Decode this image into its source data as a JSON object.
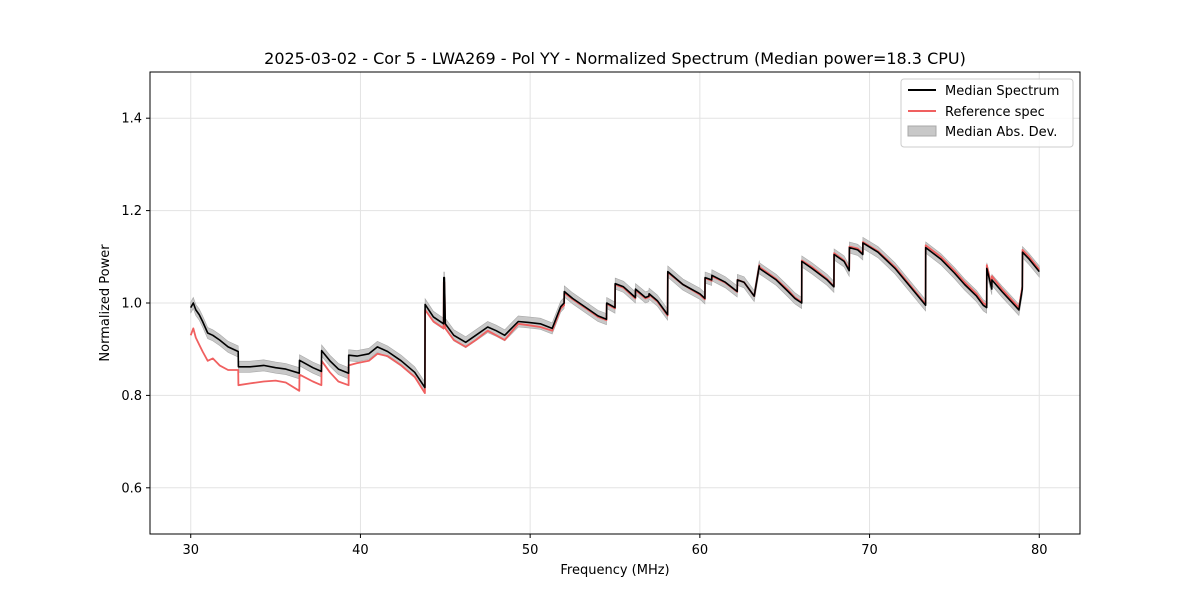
{
  "chart_data": {
    "type": "line",
    "title": "2025-03-02 - Cor 5 - LWA269 - Pol YY - Normalized Spectrum (Median power=18.3 CPU)",
    "xlabel": "Frequency (MHz)",
    "ylabel": "Normalized Power",
    "xlim": [
      27.6,
      82.4
    ],
    "ylim": [
      0.5,
      1.5
    ],
    "xticks": [
      30,
      40,
      50,
      60,
      70,
      80
    ],
    "yticks": [
      0.6,
      0.8,
      1.0,
      1.2,
      1.4
    ],
    "xtick_labels": [
      "30",
      "40",
      "50",
      "60",
      "70",
      "80"
    ],
    "ytick_labels": [
      "0.6",
      "0.8",
      "1.0",
      "1.2",
      "1.4"
    ],
    "grid": true,
    "legend_position": "top-right",
    "colors": {
      "median": "#000000",
      "reference": "#f06060",
      "band_fill": "#c8c8c8",
      "band_edge": "#a8a8a8"
    },
    "series": [
      {
        "name": "Median Spectrum",
        "x": [
          30.0,
          30.15,
          30.3,
          30.5,
          30.7,
          31.0,
          31.3,
          31.7,
          32.2,
          32.8,
          32.81,
          33.5,
          34.3,
          35.0,
          35.6,
          36.4,
          36.41,
          37.2,
          37.7,
          37.71,
          38.2,
          38.7,
          39.3,
          39.31,
          39.8,
          40.5,
          41.0,
          41.6,
          42.4,
          43.2,
          43.8,
          43.81,
          44.3,
          44.9,
          44.91,
          44.95,
          45.0,
          45.5,
          46.2,
          46.8,
          47.5,
          48.0,
          48.5,
          49.3,
          49.9,
          50.6,
          51.3,
          51.8,
          52.0,
          52.01,
          52.5,
          53.3,
          54.0,
          54.5,
          54.51,
          55.0,
          55.01,
          55.5,
          56.2,
          56.21,
          56.8,
          57.0,
          57.01,
          57.5,
          58.1,
          58.11,
          59.0,
          60.0,
          60.3,
          60.31,
          60.7,
          60.71,
          61.5,
          62.2,
          62.21,
          62.6,
          63.2,
          63.5,
          63.51,
          64.5,
          65.2,
          65.6,
          66.0,
          66.01,
          66.6,
          67.5,
          67.9,
          67.91,
          68.5,
          68.8,
          68.81,
          69.3,
          69.6,
          69.61,
          70.5,
          71.5,
          72.4,
          73.3,
          73.31,
          74.2,
          75.0,
          75.6,
          76.3,
          76.7,
          76.9,
          76.91,
          77.2,
          77.21,
          77.8,
          78.3,
          78.8,
          79.0,
          79.01,
          79.4,
          80.0
        ],
        "y": [
          0.99,
          1.0,
          0.985,
          0.975,
          0.96,
          0.935,
          0.93,
          0.92,
          0.905,
          0.895,
          0.862,
          0.862,
          0.865,
          0.86,
          0.857,
          0.848,
          0.876,
          0.86,
          0.852,
          0.897,
          0.875,
          0.857,
          0.848,
          0.887,
          0.885,
          0.89,
          0.905,
          0.895,
          0.875,
          0.85,
          0.817,
          0.997,
          0.97,
          0.955,
          1.055,
          1.055,
          0.955,
          0.93,
          0.915,
          0.93,
          0.948,
          0.94,
          0.93,
          0.96,
          0.958,
          0.955,
          0.945,
          0.992,
          1.0,
          1.025,
          1.01,
          0.99,
          0.972,
          0.965,
          1.0,
          0.99,
          1.042,
          1.035,
          1.012,
          1.03,
          1.012,
          1.015,
          1.02,
          1.005,
          0.975,
          1.068,
          1.04,
          1.02,
          1.01,
          1.055,
          1.05,
          1.06,
          1.045,
          1.025,
          1.05,
          1.045,
          1.015,
          1.08,
          1.075,
          1.05,
          1.025,
          1.01,
          1.0,
          1.09,
          1.075,
          1.05,
          1.035,
          1.105,
          1.09,
          1.07,
          1.12,
          1.115,
          1.105,
          1.13,
          1.11,
          1.075,
          1.035,
          0.995,
          1.12,
          1.095,
          1.065,
          1.04,
          1.015,
          0.995,
          0.99,
          1.075,
          1.03,
          1.05,
          1.025,
          1.005,
          0.985,
          1.03,
          1.11,
          1.095,
          1.068
        ]
      },
      {
        "name": "Reference spec",
        "x": [
          30.0,
          30.15,
          30.3,
          30.5,
          30.7,
          31.0,
          31.3,
          31.7,
          32.2,
          32.8,
          32.81,
          33.5,
          34.3,
          35.0,
          35.6,
          36.4,
          36.41,
          37.2,
          37.7,
          37.71,
          38.2,
          38.7,
          39.3,
          39.31,
          39.8,
          40.5,
          41.0,
          41.6,
          42.4,
          43.2,
          43.8,
          43.81,
          44.3,
          44.9,
          44.91,
          44.95,
          45.0,
          45.5,
          46.2,
          46.8,
          47.5,
          48.0,
          48.5,
          49.3,
          49.9,
          50.6,
          51.3,
          51.8,
          52.0,
          52.01,
          52.5,
          53.3,
          54.0,
          54.5,
          54.51,
          55.0,
          55.01,
          55.5,
          56.2,
          56.21,
          56.8,
          57.0,
          57.01,
          57.5,
          58.1,
          58.11,
          59.0,
          60.0,
          60.3,
          60.31,
          60.7,
          60.71,
          61.5,
          62.2,
          62.21,
          62.6,
          63.2,
          63.5,
          63.51,
          64.5,
          65.2,
          65.6,
          66.0,
          66.01,
          66.6,
          67.5,
          67.9,
          67.91,
          68.5,
          68.8,
          68.81,
          69.3,
          69.6,
          69.61,
          70.5,
          71.5,
          72.4,
          73.3,
          73.31,
          74.2,
          75.0,
          75.6,
          76.3,
          76.7,
          76.9,
          76.91,
          77.2,
          77.21,
          77.8,
          78.3,
          78.8,
          79.0,
          79.01,
          79.4,
          80.0
        ],
        "y": [
          0.93,
          0.945,
          0.925,
          0.91,
          0.895,
          0.875,
          0.88,
          0.865,
          0.855,
          0.855,
          0.822,
          0.826,
          0.83,
          0.832,
          0.828,
          0.81,
          0.845,
          0.83,
          0.822,
          0.875,
          0.85,
          0.83,
          0.822,
          0.865,
          0.87,
          0.875,
          0.89,
          0.885,
          0.865,
          0.84,
          0.805,
          0.985,
          0.96,
          0.945,
          1.045,
          1.045,
          0.945,
          0.92,
          0.905,
          0.92,
          0.94,
          0.93,
          0.92,
          0.955,
          0.952,
          0.948,
          0.94,
          0.988,
          0.995,
          1.022,
          1.008,
          0.988,
          0.97,
          0.963,
          0.998,
          0.988,
          1.04,
          1.033,
          1.01,
          1.028,
          1.01,
          1.013,
          1.018,
          1.003,
          0.973,
          1.066,
          1.04,
          1.018,
          1.008,
          1.054,
          1.048,
          1.058,
          1.044,
          1.024,
          1.05,
          1.045,
          1.015,
          1.082,
          1.078,
          1.052,
          1.028,
          1.012,
          1.002,
          1.092,
          1.078,
          1.052,
          1.036,
          1.108,
          1.092,
          1.072,
          1.122,
          1.118,
          1.107,
          1.132,
          1.112,
          1.078,
          1.038,
          0.998,
          1.125,
          1.1,
          1.07,
          1.045,
          1.02,
          1.0,
          0.995,
          1.082,
          1.035,
          1.058,
          1.03,
          1.01,
          0.99,
          1.035,
          1.115,
          1.1,
          1.072
        ]
      }
    ],
    "band": {
      "name": "Median Abs. Dev.",
      "half_width": 0.012
    }
  }
}
